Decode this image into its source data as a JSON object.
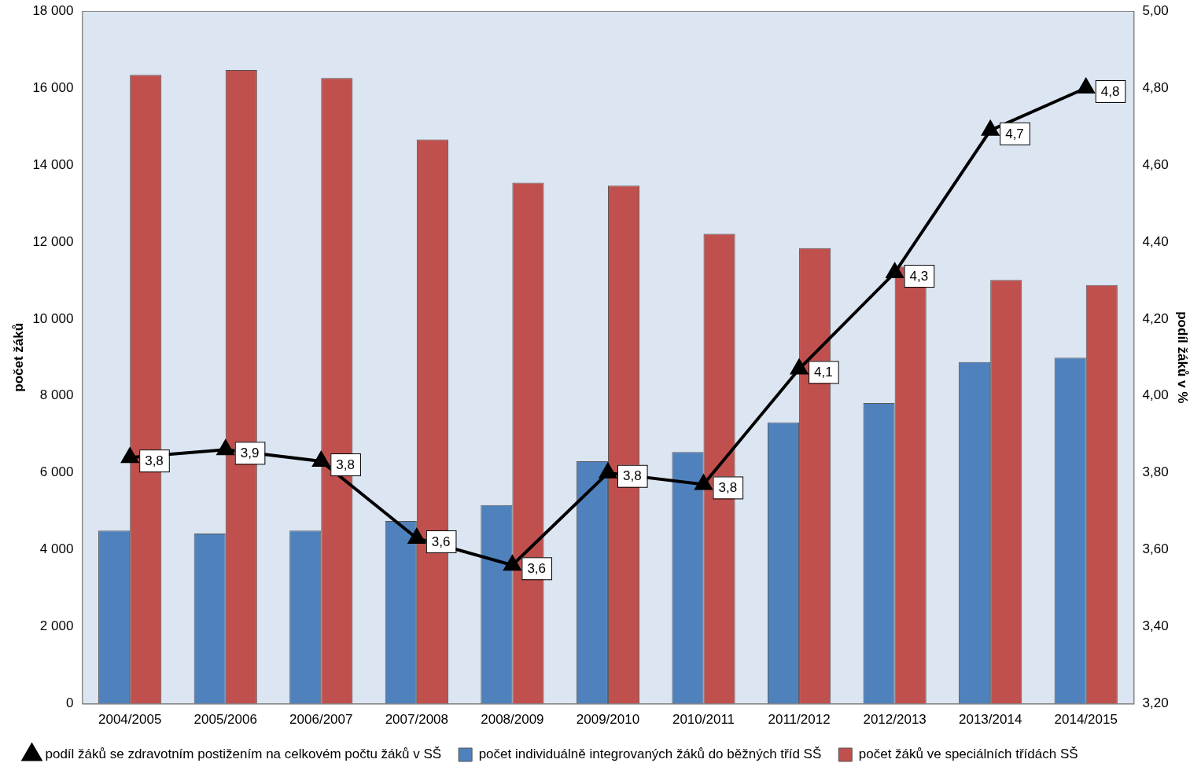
{
  "chart_data": {
    "type": "bar",
    "categories": [
      "2004/2005",
      "2005/2006",
      "2006/2007",
      "2007/2008",
      "2008/2009",
      "2009/2010",
      "2010/2011",
      "2011/2012",
      "2012/2013",
      "2013/2014",
      "2014/2015"
    ],
    "y_label": "počet žáků",
    "y2_label": "podíl žáků v %",
    "ylim": [
      0,
      18000
    ],
    "yticks": [
      0,
      {
        "value": 2000,
        "label": "2 000"
      },
      {
        "value": 4000,
        "label": "4 000"
      },
      {
        "value": 6000,
        "label": "6 000"
      },
      {
        "value": 8000,
        "label": "8 000"
      },
      {
        "value": 10000,
        "label": "10 000"
      },
      {
        "value": 12000,
        "label": "12 000"
      },
      {
        "value": 14000,
        "label": "14 000"
      },
      {
        "value": 16000,
        "label": "16 000"
      },
      {
        "value": 18000,
        "label": "18 000"
      }
    ],
    "y2lim": [
      3.2,
      5.0
    ],
    "y2ticks": [
      {
        "value": 3.2,
        "label": "3,20"
      },
      {
        "value": 3.4,
        "label": "3,40"
      },
      {
        "value": 3.6,
        "label": "3,60"
      },
      {
        "value": 3.8,
        "label": "3,80"
      },
      {
        "value": 4.0,
        "label": "4,00"
      },
      {
        "value": 4.2,
        "label": "4,20"
      },
      {
        "value": 4.4,
        "label": "4,40"
      },
      {
        "value": 4.6,
        "label": "4,60"
      },
      {
        "value": 4.8,
        "label": "4,80"
      },
      {
        "value": 5.0,
        "label": "5,00"
      }
    ],
    "grid": false,
    "legend": "bottom",
    "series": [
      {
        "name": "počet individuálně integrovaných žáků do běžných tříd SŠ",
        "type": "bar",
        "color": "#4f81bd",
        "values": [
          4500,
          4420,
          4500,
          4750,
          5160,
          6300,
          6540,
          7310,
          7810,
          8880,
          8990
        ]
      },
      {
        "name": "počet žáků ve speciálních třídách SŠ",
        "type": "bar",
        "color": "#c0504d",
        "values": [
          16340,
          16470,
          16260,
          14660,
          13540,
          13460,
          12210,
          11840,
          11360,
          11010,
          10880
        ]
      },
      {
        "name": "podíl žáků se zdravotním postižením na celkovém počtu žáků v SŠ",
        "type": "line",
        "axis": "y2",
        "color": "#000000",
        "marker": "triangle",
        "line_style": "solid",
        "data_labels": true,
        "values": [
          3.84,
          3.86,
          3.83,
          3.63,
          3.56,
          3.8,
          3.77,
          4.07,
          4.32,
          4.69,
          4.8
        ],
        "value_labels": [
          "3,8",
          "3,9",
          "3,8",
          "3,6",
          "3,6",
          "3,8",
          "3,8",
          "4,1",
          "4,3",
          "4,7",
          "4,8"
        ]
      }
    ]
  }
}
